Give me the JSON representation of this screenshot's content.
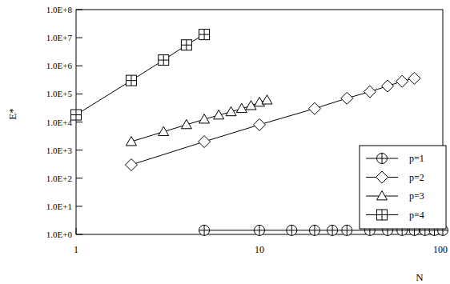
{
  "chart_data": {
    "type": "line",
    "x_label": "N",
    "y_label": "E*",
    "log": true,
    "grid": false,
    "legend": "lower right",
    "xlim": [
      1,
      100
    ],
    "ylim": [
      1,
      100000000
    ],
    "xticks": [
      1,
      10,
      100
    ],
    "yticks": [
      {
        "value": 1,
        "label": "1.0E+0"
      },
      {
        "value": 10,
        "label": "1.0E+1"
      },
      {
        "value": 100,
        "label": "1.0E+2"
      },
      {
        "value": 1000,
        "label": "1.0E+3"
      },
      {
        "value": 10000,
        "label": "1.0E+4"
      },
      {
        "value": 100000,
        "label": "1.0E+5"
      },
      {
        "value": 1000000,
        "label": "1.0E+6"
      },
      {
        "value": 10000000,
        "label": "1.0E+7"
      },
      {
        "value": 100000000,
        "label": "1.0E+8"
      }
    ],
    "series": [
      {
        "name": "p=1",
        "color": "#000000",
        "marker": "circle",
        "x": [
          5,
          10,
          15,
          20,
          25,
          30,
          40,
          50,
          60,
          70,
          80,
          90,
          100
        ],
        "values": [
          1.4,
          1.4,
          1.4,
          1.4,
          1.4,
          1.4,
          1.4,
          1.4,
          1.4,
          1.4,
          1.4,
          1.4,
          1.4
        ]
      },
      {
        "name": "p=2",
        "color": "#000000",
        "marker": "diamond",
        "x": [
          2,
          5,
          10,
          20,
          30,
          40,
          50,
          60,
          70
        ],
        "values": [
          300,
          2000,
          8000,
          30000,
          70000,
          120000,
          190000,
          280000,
          360000
        ]
      },
      {
        "name": "p=3",
        "color": "#000000",
        "marker": "triangle",
        "x": [
          2,
          3,
          4,
          5,
          6,
          7,
          8,
          9,
          10,
          11
        ],
        "values": [
          2000,
          4500,
          8000,
          12500,
          17500,
          23000,
          30000,
          38000,
          50000,
          60000
        ]
      },
      {
        "name": "p=4",
        "color": "#000000",
        "marker": "square",
        "x": [
          1,
          2,
          3,
          4,
          5
        ],
        "values": [
          18000,
          300000,
          1600000,
          5500000,
          13000000
        ]
      }
    ]
  }
}
